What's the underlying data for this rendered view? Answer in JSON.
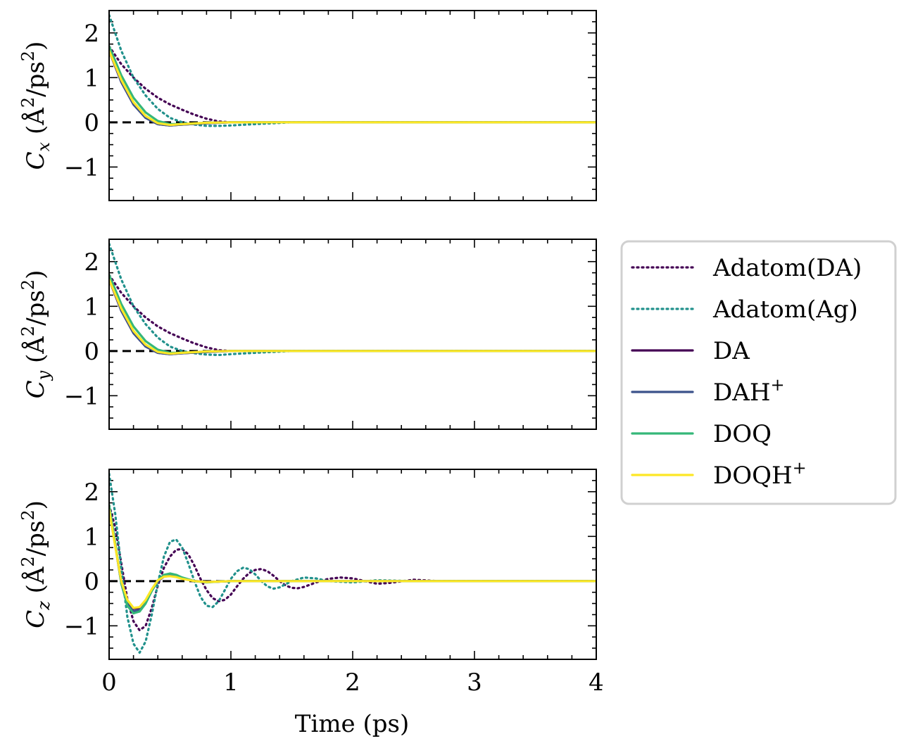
{
  "chart_data": {
    "type": "line",
    "xlabel": "Time (ps)",
    "xlim": [
      0,
      4
    ],
    "xticks": [
      "0",
      "1",
      "2",
      "3",
      "4"
    ],
    "yticks": [
      "−1",
      "0",
      "1",
      "2"
    ],
    "ylim": [
      -1.75,
      2.5
    ],
    "legend_position": "right, outside, middle",
    "reference_line": {
      "y": 0,
      "style": "dashed",
      "color": "#000000"
    },
    "series_styles": [
      {
        "name": "Adatom(DA)",
        "color": "#440154",
        "dash": "dotted"
      },
      {
        "name": "Adatom(Ag)",
        "color": "#21918c",
        "dash": "dotted"
      },
      {
        "name": "DA",
        "color": "#440154",
        "dash": "solid"
      },
      {
        "name": "DAH+",
        "color": "#3b528b",
        "dash": "solid"
      },
      {
        "name": "DOQ",
        "color": "#35b779",
        "dash": "solid"
      },
      {
        "name": "DOQH+",
        "color": "#fde725",
        "dash": "solid"
      }
    ],
    "panels": [
      {
        "ylabel": "C_x (Å²/ps²)",
        "ylabel_parts": {
          "var": "C",
          "sub": "x",
          "unit_pre": " (Å",
          "sup1": "2",
          "unit_mid": "/ps",
          "sup2": "2",
          "unit_post": ")"
        },
        "series": [
          {
            "name": "Adatom(DA)",
            "x": [
              0,
              0.1,
              0.2,
              0.3,
              0.4,
              0.5,
              0.6,
              0.7,
              0.8,
              0.9,
              1.0,
              1.5,
              2.0,
              3.0,
              4.0
            ],
            "y": [
              1.7,
              1.3,
              1.0,
              0.75,
              0.55,
              0.4,
              0.28,
              0.17,
              0.08,
              0.02,
              0.0,
              0.0,
              0.0,
              0.0,
              0.0
            ]
          },
          {
            "name": "Adatom(Ag)",
            "x": [
              0,
              0.1,
              0.2,
              0.3,
              0.4,
              0.5,
              0.6,
              0.7,
              0.8,
              0.9,
              1.0,
              1.2,
              1.5,
              2.0,
              3.0,
              4.0
            ],
            "y": [
              2.4,
              1.6,
              1.0,
              0.6,
              0.3,
              0.1,
              0.0,
              -0.05,
              -0.08,
              -0.08,
              -0.07,
              -0.04,
              0.0,
              0.0,
              0.0,
              0.0
            ]
          },
          {
            "name": "DA",
            "x": [
              0,
              0.1,
              0.2,
              0.3,
              0.4,
              0.5,
              0.6,
              0.8,
              1.0,
              2.0,
              4.0
            ],
            "y": [
              1.6,
              0.9,
              0.4,
              0.1,
              -0.04,
              -0.07,
              -0.05,
              -0.02,
              0.0,
              0.0,
              0.0
            ]
          },
          {
            "name": "DAH+",
            "x": [
              0,
              0.1,
              0.2,
              0.3,
              0.4,
              0.5,
              0.6,
              0.8,
              1.0,
              2.0,
              4.0
            ],
            "y": [
              1.65,
              0.9,
              0.4,
              0.1,
              -0.04,
              -0.07,
              -0.05,
              -0.02,
              0.0,
              0.0,
              0.0
            ]
          },
          {
            "name": "DOQ",
            "x": [
              0,
              0.1,
              0.2,
              0.3,
              0.4,
              0.5,
              0.6,
              0.8,
              1.0,
              2.0,
              4.0
            ],
            "y": [
              1.7,
              1.05,
              0.55,
              0.22,
              0.03,
              -0.04,
              -0.04,
              -0.01,
              0.0,
              0.0,
              0.0
            ]
          },
          {
            "name": "DOQH+",
            "x": [
              0,
              0.1,
              0.2,
              0.3,
              0.4,
              0.5,
              0.6,
              0.8,
              1.0,
              2.0,
              4.0
            ],
            "y": [
              1.6,
              0.95,
              0.45,
              0.14,
              -0.02,
              -0.06,
              -0.04,
              -0.01,
              0.0,
              0.0,
              0.0
            ]
          }
        ]
      },
      {
        "ylabel": "C_y (Å²/ps²)",
        "ylabel_parts": {
          "var": "C",
          "sub": "y",
          "unit_pre": " (Å",
          "sup1": "2",
          "unit_mid": "/ps",
          "sup2": "2",
          "unit_post": ")"
        },
        "series": [
          {
            "name": "Adatom(DA)",
            "x": [
              0,
              0.1,
              0.2,
              0.3,
              0.4,
              0.5,
              0.6,
              0.7,
              0.8,
              0.9,
              1.0,
              1.5,
              2.0,
              3.0,
              4.0
            ],
            "y": [
              1.7,
              1.3,
              1.0,
              0.75,
              0.55,
              0.4,
              0.28,
              0.17,
              0.08,
              0.02,
              0.0,
              0.0,
              0.0,
              0.0,
              0.0
            ]
          },
          {
            "name": "Adatom(Ag)",
            "x": [
              0,
              0.1,
              0.2,
              0.3,
              0.4,
              0.5,
              0.6,
              0.7,
              0.8,
              0.9,
              1.0,
              1.2,
              1.5,
              2.0,
              3.0,
              4.0
            ],
            "y": [
              2.4,
              1.6,
              1.0,
              0.6,
              0.3,
              0.1,
              0.0,
              -0.05,
              -0.08,
              -0.09,
              -0.07,
              -0.04,
              0.0,
              0.0,
              0.0,
              0.0
            ]
          },
          {
            "name": "DA",
            "x": [
              0,
              0.1,
              0.2,
              0.3,
              0.4,
              0.5,
              0.6,
              0.8,
              1.0,
              2.0,
              4.0
            ],
            "y": [
              1.6,
              0.9,
              0.4,
              0.1,
              -0.04,
              -0.07,
              -0.05,
              -0.02,
              0.0,
              0.0,
              0.0
            ]
          },
          {
            "name": "DAH+",
            "x": [
              0,
              0.1,
              0.2,
              0.3,
              0.4,
              0.5,
              0.6,
              0.8,
              1.0,
              2.0,
              4.0
            ],
            "y": [
              1.65,
              0.9,
              0.4,
              0.1,
              -0.04,
              -0.07,
              -0.05,
              -0.02,
              0.0,
              0.0,
              0.0
            ]
          },
          {
            "name": "DOQ",
            "x": [
              0,
              0.1,
              0.2,
              0.3,
              0.4,
              0.5,
              0.6,
              0.8,
              1.0,
              2.0,
              4.0
            ],
            "y": [
              1.7,
              1.05,
              0.55,
              0.22,
              0.03,
              -0.04,
              -0.04,
              -0.01,
              0.0,
              0.0,
              0.0
            ]
          },
          {
            "name": "DOQH+",
            "x": [
              0,
              0.1,
              0.2,
              0.3,
              0.4,
              0.5,
              0.6,
              0.8,
              1.0,
              2.0,
              4.0
            ],
            "y": [
              1.6,
              0.95,
              0.45,
              0.14,
              -0.02,
              -0.06,
              -0.04,
              -0.01,
              0.0,
              0.0,
              0.0
            ]
          }
        ]
      },
      {
        "ylabel": "C_z (Å²/ps²)",
        "ylabel_parts": {
          "var": "C",
          "sub": "z",
          "unit_pre": " (Å",
          "sup1": "2",
          "unit_mid": "/ps",
          "sup2": "2",
          "unit_post": ")"
        },
        "series": [
          {
            "name": "Adatom(DA)",
            "x": [
              0,
              0.05,
              0.1,
              0.15,
              0.2,
              0.25,
              0.3,
              0.35,
              0.4,
              0.45,
              0.5,
              0.55,
              0.6,
              0.65,
              0.7,
              0.75,
              0.8,
              0.85,
              0.9,
              0.95,
              1.0,
              1.05,
              1.1,
              1.15,
              1.2,
              1.25,
              1.3,
              1.35,
              1.4,
              1.45,
              1.5,
              1.55,
              1.6,
              1.7,
              1.8,
              1.9,
              2.0,
              2.1,
              2.2,
              2.3,
              2.5,
              2.7,
              3.0,
              4.0
            ],
            "y": [
              1.7,
              1.2,
              0.4,
              -0.4,
              -0.9,
              -1.1,
              -1.0,
              -0.6,
              -0.1,
              0.3,
              0.55,
              0.7,
              0.72,
              0.6,
              0.35,
              0.05,
              -0.2,
              -0.38,
              -0.45,
              -0.42,
              -0.3,
              -0.12,
              0.05,
              0.18,
              0.25,
              0.27,
              0.22,
              0.12,
              0.0,
              -0.1,
              -0.15,
              -0.16,
              -0.13,
              -0.03,
              0.05,
              0.08,
              0.06,
              0.0,
              -0.06,
              -0.04,
              0.03,
              0.0,
              0.0,
              0.0
            ]
          },
          {
            "name": "Adatom(Ag)",
            "x": [
              0,
              0.05,
              0.1,
              0.15,
              0.2,
              0.25,
              0.3,
              0.35,
              0.4,
              0.45,
              0.5,
              0.55,
              0.6,
              0.65,
              0.7,
              0.75,
              0.8,
              0.85,
              0.9,
              0.95,
              1.0,
              1.05,
              1.1,
              1.15,
              1.2,
              1.25,
              1.3,
              1.35,
              1.4,
              1.5,
              1.6,
              1.7,
              1.8,
              2.0,
              2.2,
              2.5,
              3.0,
              4.0
            ],
            "y": [
              2.4,
              1.5,
              0.3,
              -0.8,
              -1.4,
              -1.6,
              -1.35,
              -0.75,
              -0.05,
              0.55,
              0.88,
              0.93,
              0.75,
              0.4,
              0.0,
              -0.35,
              -0.55,
              -0.58,
              -0.45,
              -0.2,
              0.05,
              0.22,
              0.3,
              0.27,
              0.15,
              0.0,
              -0.12,
              -0.17,
              -0.14,
              0.0,
              0.08,
              0.06,
              0.0,
              -0.03,
              0.02,
              0.0,
              0.0,
              0.0
            ]
          },
          {
            "name": "DA",
            "x": [
              0,
              0.05,
              0.1,
              0.15,
              0.2,
              0.25,
              0.3,
              0.35,
              0.4,
              0.45,
              0.5,
              0.55,
              0.6,
              0.7,
              0.8,
              0.9,
              1.0,
              4.0
            ],
            "y": [
              1.6,
              0.8,
              0.0,
              -0.45,
              -0.62,
              -0.6,
              -0.45,
              -0.2,
              0.0,
              0.1,
              0.12,
              0.1,
              0.06,
              0.0,
              -0.02,
              -0.01,
              0.0,
              0.0
            ]
          },
          {
            "name": "DAH+",
            "x": [
              0,
              0.05,
              0.1,
              0.15,
              0.2,
              0.25,
              0.3,
              0.35,
              0.4,
              0.45,
              0.5,
              0.55,
              0.6,
              0.7,
              0.8,
              0.9,
              1.0,
              4.0
            ],
            "y": [
              1.65,
              0.8,
              -0.05,
              -0.5,
              -0.68,
              -0.65,
              -0.48,
              -0.22,
              0.0,
              0.1,
              0.13,
              0.11,
              0.07,
              0.0,
              -0.02,
              -0.01,
              0.0,
              0.0
            ]
          },
          {
            "name": "DOQ",
            "x": [
              0,
              0.05,
              0.1,
              0.15,
              0.2,
              0.25,
              0.3,
              0.35,
              0.4,
              0.45,
              0.5,
              0.55,
              0.6,
              0.7,
              0.8,
              0.9,
              1.0,
              4.0
            ],
            "y": [
              1.7,
              0.85,
              -0.05,
              -0.55,
              -0.72,
              -0.68,
              -0.5,
              -0.22,
              0.02,
              0.14,
              0.17,
              0.14,
              0.08,
              0.0,
              -0.03,
              -0.01,
              0.0,
              0.0
            ]
          },
          {
            "name": "DOQH+",
            "x": [
              0,
              0.05,
              0.1,
              0.15,
              0.2,
              0.25,
              0.3,
              0.35,
              0.4,
              0.45,
              0.5,
              0.55,
              0.6,
              0.7,
              0.8,
              0.9,
              1.0,
              4.0
            ],
            "y": [
              1.6,
              0.78,
              0.0,
              -0.42,
              -0.6,
              -0.58,
              -0.42,
              -0.18,
              0.02,
              0.1,
              0.11,
              0.09,
              0.05,
              0.0,
              -0.02,
              -0.01,
              0.0,
              0.0
            ]
          }
        ]
      }
    ],
    "legend": [
      {
        "label": "Adatom(DA)",
        "base": "Adatom(DA)",
        "sup": ""
      },
      {
        "label": "Adatom(Ag)",
        "base": "Adatom(Ag)",
        "sup": ""
      },
      {
        "label": "DA",
        "base": "DA",
        "sup": ""
      },
      {
        "label": "DAH+",
        "base": "DAH",
        "sup": "+"
      },
      {
        "label": "DOQ",
        "base": "DOQ",
        "sup": ""
      },
      {
        "label": "DOQH+",
        "base": "DOQH",
        "sup": "+"
      }
    ]
  }
}
